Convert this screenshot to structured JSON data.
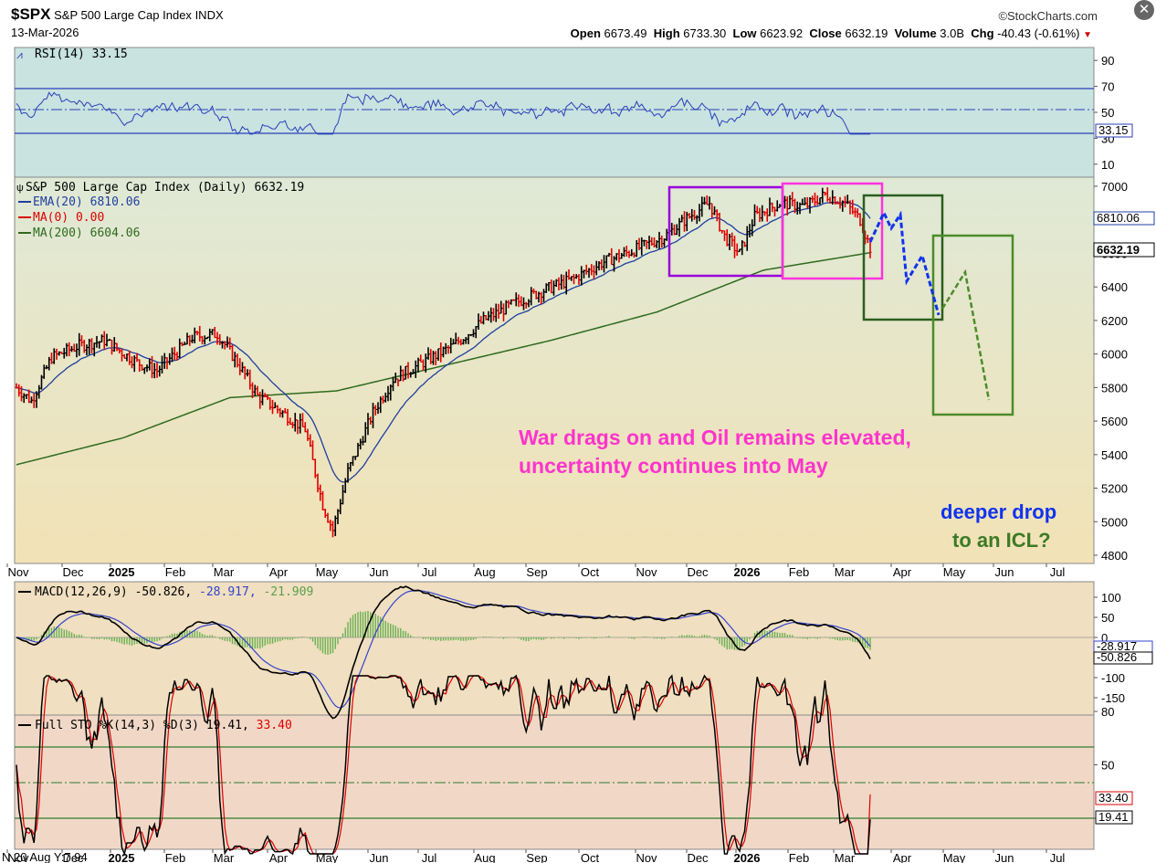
{
  "header": {
    "symbol": "$SPX",
    "name": "S&P 500 Large Cap Index",
    "exchange": "INDX",
    "date": "13-Mar-2026",
    "brand": "©StockCharts.com",
    "close_icon": "close-icon",
    "ohlc": {
      "open_label": "Open",
      "open": "6673.49",
      "high_label": "High",
      "high": "6733.30",
      "low_label": "Low",
      "low": "6623.92",
      "close_label": "Close",
      "close": "6632.19",
      "volume_label": "Volume",
      "volume": "3.0B",
      "chg_label": "Chg",
      "chg": "-40.43 (-0.61%)"
    }
  },
  "colors": {
    "rsi_bg": "#c8e3e0",
    "price_bg_top": "#dfe9d6",
    "price_bg_bottom": "#f2e2b6",
    "macd_bg": "#f0dfc0",
    "sto_bg": "#f1d8c6",
    "up_bar": "#000000",
    "down_bar": "#dd0000",
    "ema": "#1f3f9f",
    "ma200": "#2e6b1f",
    "annotation": "#ff33cc",
    "blue_projection": "#1133ee",
    "green_projection": "#4c8c2a"
  },
  "labels": {
    "rsi": "RSI(14) 33.15",
    "rsi_value_tag": "33.15",
    "price_title": "S&P 500 Large Cap Index (Daily) 6632.19",
    "ema": "EMA(20) 6810.06",
    "ma0": "MA(0) 0.00",
    "ma200": "MA(200) 6604.06",
    "ema_tag": "6810.06",
    "close_tag": "6632.19",
    "macd_prefix": "MACD(12,26,9)",
    "macd_v1": "-50.826,",
    "macd_v2": "-28.917,",
    "macd_v3": "-21.909",
    "macd_tag1": "-28.917",
    "macd_tag2": "-50.826",
    "sto_prefix": "Full STO %K(14,3) %D(3)",
    "sto_v1": "19.41,",
    "sto_v2": "33.40",
    "sto_tag1": "33.40",
    "sto_tag2": "19.41",
    "annotation_line1": "War drags on and Oil remains elevated,",
    "annotation_line2": "uncertainty continues into May",
    "deeper_line1": "deeper drop",
    "deeper_line2": "to an ICL?",
    "bottom_left": "N 20 Aug Y:7.94"
  },
  "axes": {
    "months": [
      "Nov",
      "Dec",
      "2025",
      "Feb",
      "Mar",
      "Apr",
      "May",
      "Jun",
      "Jul",
      "Aug",
      "Sep",
      "Oct",
      "Nov",
      "Dec",
      "2026",
      "Feb",
      "Mar",
      "Apr",
      "May",
      "Jun",
      "Jul"
    ],
    "price_ticks": [
      "7000",
      "6800",
      "6600",
      "6400",
      "6200",
      "6000",
      "5800",
      "5600",
      "5400",
      "5200",
      "5000",
      "4800"
    ],
    "rsi_ticks": [
      "90",
      "70",
      "50",
      "30",
      "10"
    ],
    "macd_ticks": [
      "100",
      "50",
      "0",
      "-50",
      "-100",
      "-150"
    ],
    "sto_ticks": [
      "80",
      "50",
      "20"
    ]
  },
  "chart_data": {
    "type": "line",
    "title": "S&P 500 Large Cap Index (Daily)",
    "x_range": [
      "Nov 2024",
      "Jul 2026"
    ],
    "price_ylim": [
      4800,
      7000
    ],
    "series": [
      {
        "name": "$SPX",
        "months": [
          "Nov",
          "Dec",
          "2025",
          "Feb",
          "Mar",
          "Apr",
          "Apr",
          "May",
          "Jun",
          "Jul",
          "Aug",
          "Sep",
          "Oct",
          "Nov",
          "Nov",
          "Dec",
          "2026",
          "Feb",
          "Mar",
          "13-Mar"
        ],
        "values": [
          5750,
          6050,
          5900,
          6100,
          5650,
          4980,
          5400,
          5900,
          6000,
          6250,
          6380,
          6550,
          6700,
          6900,
          6550,
          6850,
          6950,
          6900,
          6750,
          6632.19
        ]
      },
      {
        "name": "EMA(20)",
        "last": 6810.06
      },
      {
        "name": "MA(200)",
        "last": 6604.06,
        "values": [
          5340,
          5500,
          5740,
          5780,
          5930,
          6080,
          6250,
          6500,
          6604.06
        ]
      }
    ],
    "projection_blue": [
      6632,
      6780,
      6700,
      6850,
      6550,
      6700,
      6250
    ],
    "projection_green": [
      6250,
      6480,
      5720
    ],
    "rsi": {
      "value": 33.15,
      "ylim": [
        0,
        100
      ],
      "levels": [
        70,
        50,
        30
      ]
    },
    "macd": {
      "macd": -50.826,
      "signal": -28.917,
      "histogram": -21.909
    },
    "stochastic": {
      "k": 19.41,
      "d": 33.4,
      "levels": [
        80,
        50,
        20
      ]
    }
  }
}
